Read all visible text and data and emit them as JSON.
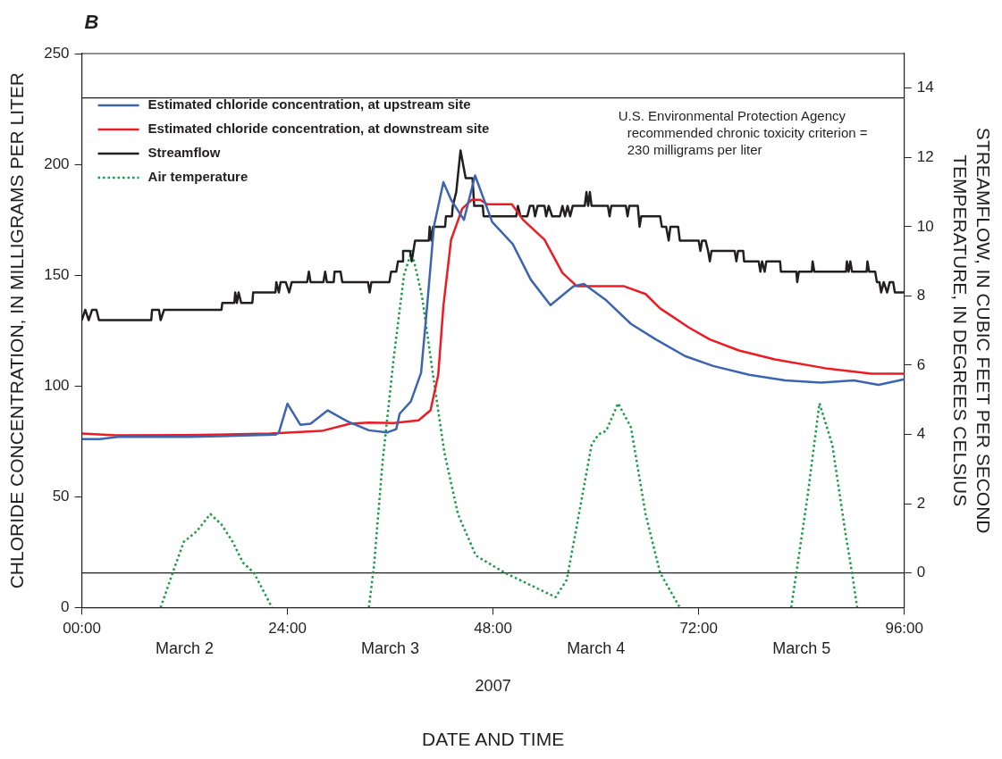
{
  "chart_data": {
    "type": "line",
    "title": "B",
    "xlabel": "DATE AND TIME",
    "ylabel": "CHLORIDE CONCENTRATION, IN MILLIGRAMS PER LITER",
    "y2label": "STREAMFLOW, IN CUBIC FEET PER SECOND\nTEMPERATURE, IN DEGREES CELSIUS",
    "xlim": [
      0,
      96
    ],
    "xticks": [
      {
        "value": 0,
        "label": "00:00"
      },
      {
        "value": 24,
        "label": "24:00"
      },
      {
        "value": 48,
        "label": "48:00"
      },
      {
        "value": 72,
        "label": "72:00"
      },
      {
        "value": 96,
        "label": "96:00"
      }
    ],
    "ylim": [
      0,
      250
    ],
    "yticks": [
      0,
      50,
      100,
      150,
      200,
      250
    ],
    "y2lim": [
      -1,
      15
    ],
    "y2ticks": [
      0,
      2,
      4,
      6,
      8,
      10,
      12,
      14
    ],
    "grid": false,
    "legend": "top left",
    "marker": "none",
    "line_style": "solid",
    "ref_lines": [
      {
        "axis": "y",
        "value": 230,
        "label": "U.S. Environmental Protection Agency recommended chronic toxicity criterion = 230 milligrams per liter",
        "color": "#231f20"
      },
      {
        "axis": "y2",
        "value": 0,
        "color": "#231f20"
      }
    ],
    "annotations": [
      "March 2",
      "March 3",
      "March 4",
      "March 5",
      "2007"
    ],
    "series": [
      {
        "name": "Estimated chloride concentration, at upstream site",
        "color": "#3c64b1",
        "x": [
          0,
          2.1,
          4.2,
          12.5,
          22.6,
          23.0,
          24.0,
          25.5,
          26.7,
          28.7,
          31.0,
          33.5,
          35.6,
          36.7,
          37.1,
          38.4,
          39.6,
          40.3,
          41.1,
          42.2,
          43.1,
          44.6,
          45.9,
          47.9,
          50.3,
          52.4,
          54.7,
          57.4,
          58.6,
          61.1,
          64.1,
          67.0,
          70.4,
          73.7,
          77.9,
          82.1,
          86.3,
          90.1,
          93.0,
          96
        ],
        "values": [
          76,
          76,
          77,
          77,
          78,
          79,
          92,
          82.5,
          83,
          89,
          84,
          80,
          79,
          80.5,
          87.5,
          93,
          106,
          136,
          172,
          192,
          184,
          175,
          195,
          174,
          164,
          148,
          136.5,
          145,
          146,
          139,
          128,
          121,
          113.5,
          109,
          105,
          102.5,
          101.5,
          102.5,
          100.5,
          103
        ]
      },
      {
        "name": "Estimated chloride concentration, at downstream site",
        "color": "#ed1c24",
        "x": [
          0,
          4,
          12,
          22,
          28,
          31.3,
          33.5,
          36.4,
          39.3,
          40.7,
          41.6,
          42.2,
          43.1,
          44.4,
          45.5,
          46.5,
          47.3,
          50.2,
          51.5,
          54.0,
          56.1,
          57.8,
          63.3,
          65.8,
          67.5,
          70.8,
          73.3,
          76.7,
          80.9,
          86.8,
          92.2,
          96
        ],
        "values": [
          78.5,
          77.7,
          77.8,
          78.5,
          79.7,
          83,
          83.5,
          83.3,
          84.5,
          89,
          105,
          136,
          166,
          180,
          184,
          184,
          182,
          182,
          175,
          166,
          151,
          145,
          145,
          141.5,
          135,
          126.5,
          121,
          116,
          112,
          108,
          105.5,
          105.5
        ]
      },
      {
        "name": "Streamflow",
        "color": "#231f20",
        "axis": "y2",
        "x": [
          0,
          0.4,
          0.8,
          1.2,
          1.7,
          2.0,
          8.1,
          8.2,
          9.0,
          9.2,
          9.6,
          16.3,
          16.4,
          17.8,
          17.9,
          18.1,
          18.3,
          18.6,
          19.9,
          20.0,
          22.6,
          22.7,
          23.0,
          23.2,
          23.8,
          24.2,
          24.5,
          26.3,
          26.5,
          26.7,
          28.2,
          28.4,
          28.6,
          29.4,
          29.5,
          30.2,
          30.4,
          33.4,
          33.6,
          33.8,
          35.9,
          36.1,
          36.7,
          36.9,
          37.4,
          37.5,
          38.3,
          38.5,
          38.7,
          38.9,
          39.6,
          40.5,
          40.6,
          40.8,
          41.0,
          42.4,
          42.5,
          43.2,
          43.3,
          43.7,
          44.2,
          44.8,
          45.6,
          45.8,
          46.8,
          46.9,
          50.7,
          50.9,
          51.2,
          52.0,
          52.3,
          52.7,
          52.9,
          53.2,
          54.0,
          54.2,
          54.5,
          54.9,
          55.8,
          56.1,
          56.4,
          56.7,
          57.0,
          57.3,
          58.7,
          58.9,
          59.1,
          59.3,
          59.5,
          61.4,
          61.6,
          61.8,
          63.5,
          63.7,
          63.9,
          64.9,
          65.1,
          65.3,
          67.5,
          67.7,
          68.2,
          68.5,
          68.7,
          69.6,
          69.8,
          72.0,
          72.2,
          72.4,
          72.8,
          73.1,
          73.3,
          73.5,
          76.2,
          76.4,
          76.6,
          77.2,
          77.3,
          79.0,
          79.2,
          79.4,
          79.7,
          79.9,
          81.5,
          81.6,
          83.4,
          83.5,
          83.7,
          85.2,
          85.3,
          85.5,
          89.2,
          89.3,
          89.5,
          89.7,
          89.9,
          91.6,
          91.7,
          91.9,
          92.6,
          92.8,
          93.1,
          93.3,
          93.6,
          94.0,
          94.3,
          94.7,
          94.9,
          96
        ],
        "values": [
          7.3,
          7.6,
          7.3,
          7.6,
          7.6,
          7.3,
          7.3,
          7.6,
          7.6,
          7.3,
          7.6,
          7.6,
          7.8,
          7.8,
          8.1,
          7.8,
          8.1,
          7.8,
          7.8,
          8.1,
          8.1,
          8.4,
          8.1,
          8.4,
          8.4,
          8.1,
          8.4,
          8.4,
          8.7,
          8.4,
          8.4,
          8.7,
          8.4,
          8.4,
          8.7,
          8.7,
          8.4,
          8.4,
          8.1,
          8.4,
          8.4,
          8.7,
          8.7,
          9.0,
          9.0,
          9.3,
          9.3,
          9.0,
          9.3,
          9.6,
          9.6,
          9.6,
          10.0,
          9.6,
          10.0,
          10.0,
          10.3,
          10.3,
          10.6,
          11.0,
          12.2,
          11.4,
          11.4,
          10.6,
          10.6,
          10.3,
          10.3,
          10.6,
          10.3,
          10.3,
          10.6,
          10.6,
          10.3,
          10.6,
          10.6,
          10.3,
          10.6,
          10.3,
          10.3,
          10.6,
          10.3,
          10.6,
          10.3,
          10.6,
          10.6,
          11.0,
          10.6,
          11.0,
          10.6,
          10.6,
          10.3,
          10.6,
          10.6,
          10.3,
          10.6,
          10.6,
          10.0,
          10.3,
          10.3,
          10.0,
          10.0,
          9.6,
          10.0,
          10.0,
          9.6,
          9.6,
          9.3,
          9.6,
          9.6,
          9.3,
          9.0,
          9.3,
          9.3,
          9.0,
          9.3,
          9.3,
          9.0,
          9.0,
          8.7,
          9.0,
          8.7,
          9.0,
          9.0,
          8.7,
          8.7,
          8.4,
          8.7,
          8.7,
          9.0,
          8.7,
          8.7,
          9.0,
          8.7,
          9.0,
          8.7,
          8.7,
          9.0,
          8.7,
          8.7,
          8.4,
          8.4,
          8.1,
          8.4,
          8.1,
          8.4,
          8.4,
          8.1,
          8.1
        ]
      },
      {
        "name": "Air temperature",
        "color": "#1b9a47",
        "axis": "y2",
        "line_style": "dotted",
        "x": [
          9.2,
          10.6,
          11.9,
          13.4,
          15.0,
          16.3,
          17.6,
          18.8,
          20.1,
          22.2,
          28,
          33.5,
          34.1,
          35.1,
          36.4,
          37.6,
          38.5,
          39.7,
          41.0,
          42.3,
          43.9,
          46.0,
          49.4,
          55.3,
          56.6,
          57.8,
          59.5,
          60.3,
          61.2,
          62.6,
          64.1,
          65.8,
          67.5,
          69.8,
          76,
          82.8,
          83.4,
          84.7,
          86.1,
          87.6,
          89.1,
          89.9,
          90.5
        ],
        "values": [
          -1,
          0,
          0.9,
          1.2,
          1.7,
          1.4,
          0.9,
          0.3,
          0,
          -1,
          null,
          -1,
          0.2,
          3.2,
          6.2,
          8.6,
          9.3,
          8.0,
          5.7,
          3.5,
          1.7,
          0.5,
          0,
          -0.7,
          -0.2,
          1.4,
          3.7,
          4.0,
          4.1,
          4.9,
          4.2,
          1.7,
          0,
          -1,
          null,
          -1,
          0,
          2.2,
          4.9,
          3.7,
          1.2,
          0,
          -1
        ]
      }
    ]
  }
}
